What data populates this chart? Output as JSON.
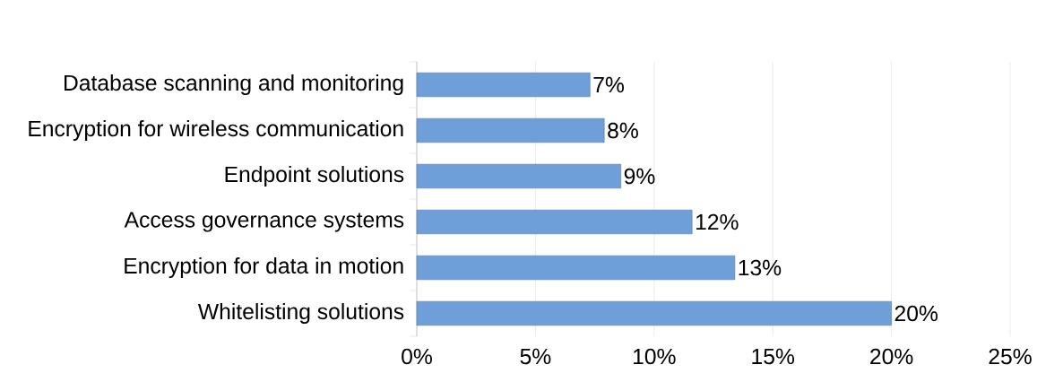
{
  "chart_data": {
    "type": "bar",
    "orientation": "horizontal",
    "categories": [
      "Database scanning and monitoring",
      "Encryption for wireless communication",
      "Endpoint solutions",
      "Access governance systems",
      "Encryption for data in motion",
      "Whitelisting solutions"
    ],
    "values": [
      7.3,
      7.9,
      8.6,
      11.6,
      13.4,
      20.0
    ],
    "value_labels": [
      "7%",
      "8%",
      "9%",
      "12%",
      "13%",
      "20%"
    ],
    "color": "#6f9fd8",
    "xlim": [
      0,
      25
    ],
    "xticks": [
      {
        "value": 0,
        "label": "0%"
      },
      {
        "value": 5,
        "label": "5%"
      },
      {
        "value": 10,
        "label": "10%"
      },
      {
        "value": 15,
        "label": "15%"
      },
      {
        "value": 20,
        "label": "20%"
      },
      {
        "value": 25,
        "label": "25%"
      }
    ],
    "grid": "x"
  }
}
